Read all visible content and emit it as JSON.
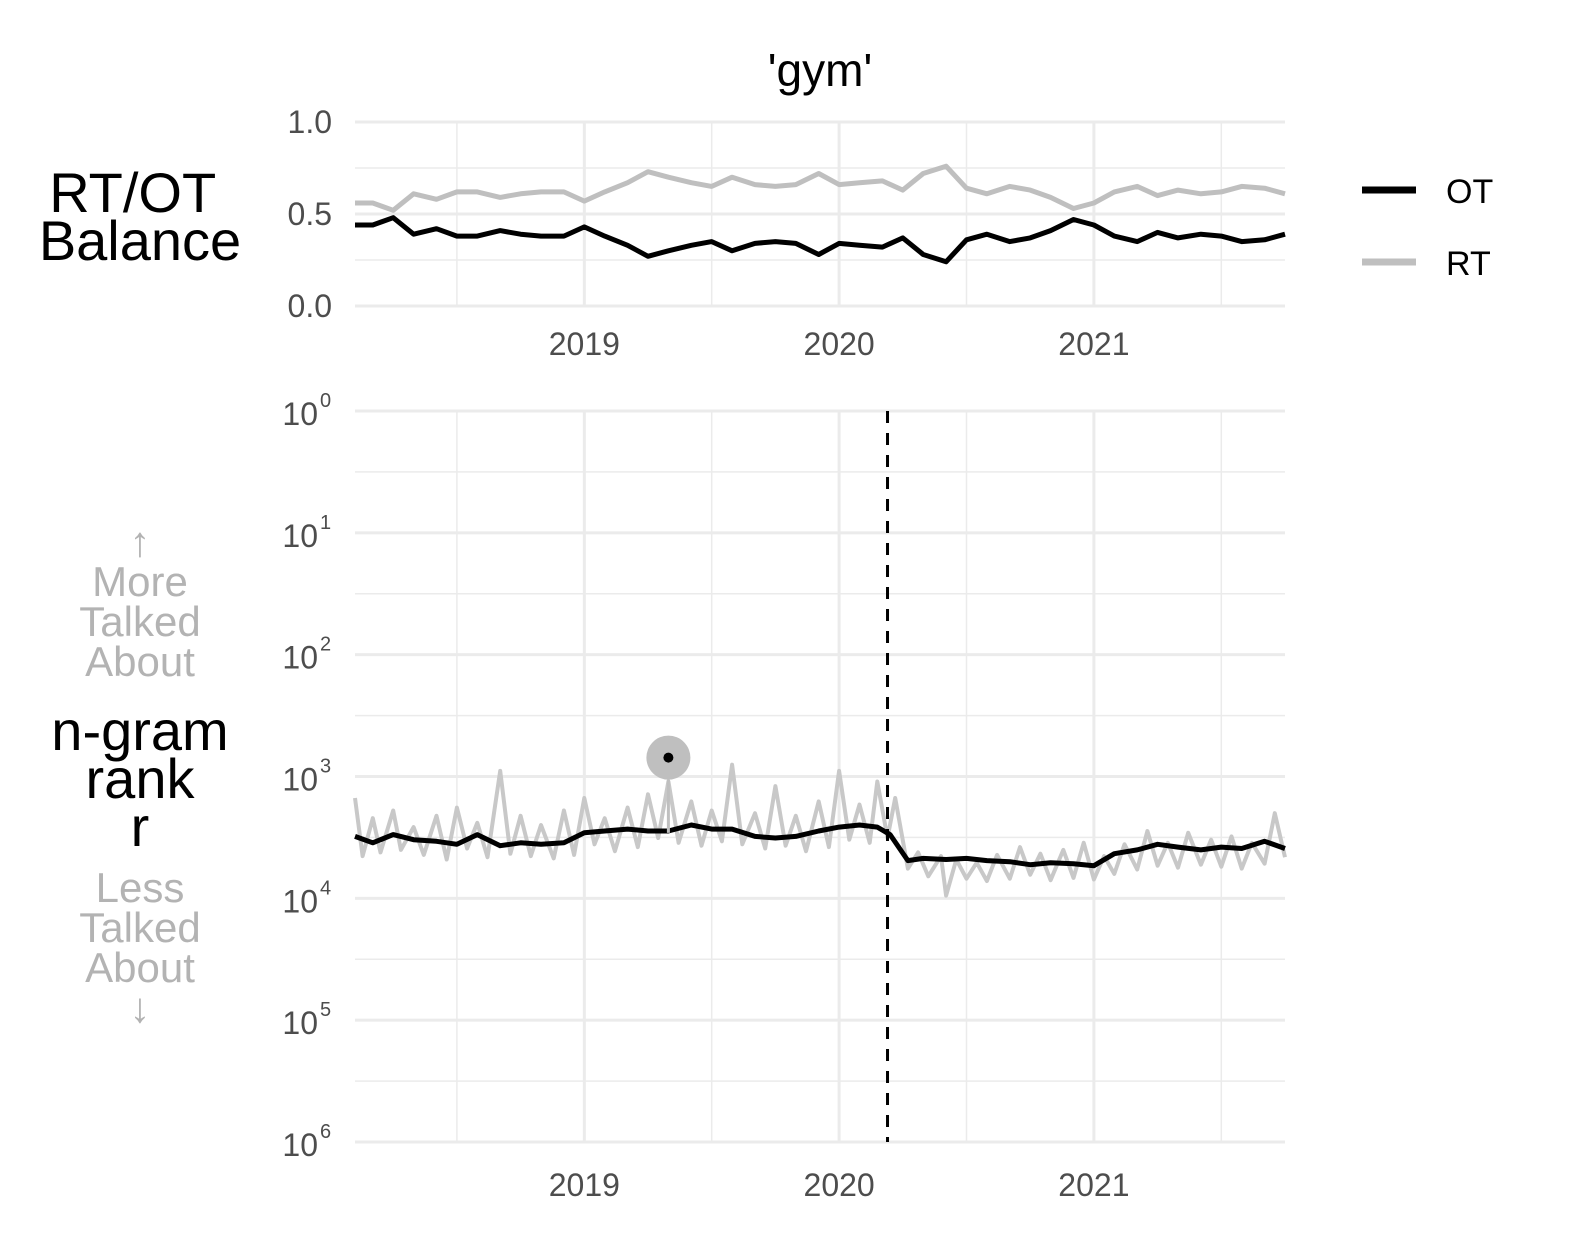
{
  "chart_data": [
    {
      "type": "line",
      "panel": "balance",
      "title": "'gym'",
      "ylabel": "RT/OT Balance",
      "ylim": [
        0,
        1
      ],
      "yticks": [
        "0.0",
        "0.5",
        "1.0"
      ],
      "xticks": [
        "2019",
        "2020",
        "2021"
      ],
      "xlim": [
        2018.1,
        2021.75
      ],
      "grid": true,
      "legend": {
        "position": "right",
        "entries": [
          "OT",
          "RT"
        ]
      },
      "series": [
        {
          "name": "OT",
          "color": "#000000",
          "x": [
            2018.1,
            2018.17,
            2018.25,
            2018.33,
            2018.42,
            2018.5,
            2018.58,
            2018.67,
            2018.75,
            2018.83,
            2018.92,
            2019.0,
            2019.08,
            2019.17,
            2019.25,
            2019.33,
            2019.42,
            2019.5,
            2019.58,
            2019.67,
            2019.75,
            2019.83,
            2019.92,
            2020.0,
            2020.08,
            2020.17,
            2020.25,
            2020.33,
            2020.42,
            2020.5,
            2020.58,
            2020.67,
            2020.75,
            2020.83,
            2020.92,
            2021.0,
            2021.08,
            2021.17,
            2021.25,
            2021.33,
            2021.42,
            2021.5,
            2021.58,
            2021.67,
            2021.75
          ],
          "y": [
            0.44,
            0.44,
            0.48,
            0.39,
            0.42,
            0.38,
            0.38,
            0.41,
            0.39,
            0.38,
            0.38,
            0.43,
            0.38,
            0.33,
            0.27,
            0.3,
            0.33,
            0.35,
            0.3,
            0.34,
            0.35,
            0.34,
            0.28,
            0.34,
            0.33,
            0.32,
            0.37,
            0.28,
            0.24,
            0.36,
            0.39,
            0.35,
            0.37,
            0.41,
            0.47,
            0.44,
            0.38,
            0.35,
            0.4,
            0.37,
            0.39,
            0.38,
            0.35,
            0.36,
            0.39
          ]
        },
        {
          "name": "RT",
          "color": "#bfbfbf",
          "x": [
            2018.1,
            2018.17,
            2018.25,
            2018.33,
            2018.42,
            2018.5,
            2018.58,
            2018.67,
            2018.75,
            2018.83,
            2018.92,
            2019.0,
            2019.08,
            2019.17,
            2019.25,
            2019.33,
            2019.42,
            2019.5,
            2019.58,
            2019.67,
            2019.75,
            2019.83,
            2019.92,
            2020.0,
            2020.08,
            2020.17,
            2020.25,
            2020.33,
            2020.42,
            2020.5,
            2020.58,
            2020.67,
            2020.75,
            2020.83,
            2020.92,
            2021.0,
            2021.08,
            2021.17,
            2021.25,
            2021.33,
            2021.42,
            2021.5,
            2021.58,
            2021.67,
            2021.75
          ],
          "y": [
            0.56,
            0.56,
            0.52,
            0.61,
            0.58,
            0.62,
            0.62,
            0.59,
            0.61,
            0.62,
            0.62,
            0.57,
            0.62,
            0.67,
            0.73,
            0.7,
            0.67,
            0.65,
            0.7,
            0.66,
            0.65,
            0.66,
            0.72,
            0.66,
            0.67,
            0.68,
            0.63,
            0.72,
            0.76,
            0.64,
            0.61,
            0.65,
            0.63,
            0.59,
            0.53,
            0.56,
            0.62,
            0.65,
            0.6,
            0.63,
            0.61,
            0.62,
            0.65,
            0.64,
            0.61
          ]
        }
      ]
    },
    {
      "type": "line",
      "panel": "rank",
      "ylabel": [
        "n-gram",
        "rank",
        "r"
      ],
      "annotation_up": [
        "↑",
        "More",
        "Talked",
        "About"
      ],
      "annotation_down": [
        "Less",
        "Talked",
        "About",
        "↓"
      ],
      "yscale": "log",
      "y_reversed": true,
      "ylim": [
        1,
        1000000
      ],
      "ytick_base": "10",
      "ytick_exponents": [
        "0",
        "1",
        "2",
        "3",
        "4",
        "5",
        "6"
      ],
      "xticks": [
        "2019",
        "2020",
        "2021"
      ],
      "xlim": [
        2018.1,
        2021.75
      ],
      "grid": true,
      "vline": {
        "x": 2020.19,
        "style": "dashed"
      },
      "marker": {
        "x": 2019.33,
        "y": 700
      },
      "series": [
        {
          "name": "OT",
          "color": "#000000",
          "x": [
            2018.1,
            2018.17,
            2018.25,
            2018.33,
            2018.42,
            2018.5,
            2018.58,
            2018.67,
            2018.75,
            2018.83,
            2018.92,
            2019.0,
            2019.08,
            2019.17,
            2019.25,
            2019.33,
            2019.42,
            2019.5,
            2019.58,
            2019.67,
            2019.75,
            2019.83,
            2019.92,
            2020.0,
            2020.08,
            2020.15,
            2020.2,
            2020.27,
            2020.33,
            2020.42,
            2020.5,
            2020.58,
            2020.67,
            2020.75,
            2020.83,
            2020.92,
            2021.0,
            2021.08,
            2021.17,
            2021.25,
            2021.33,
            2021.42,
            2021.5,
            2021.58,
            2021.67,
            2021.75
          ],
          "y": [
            3100,
            3500,
            3000,
            3300,
            3400,
            3600,
            3000,
            3700,
            3500,
            3600,
            3500,
            2900,
            2800,
            2700,
            2800,
            2800,
            2500,
            2700,
            2700,
            3100,
            3200,
            3100,
            2800,
            2600,
            2500,
            2600,
            3000,
            4900,
            4700,
            4800,
            4700,
            4900,
            5000,
            5300,
            5100,
            5200,
            5400,
            4300,
            4000,
            3600,
            3800,
            4000,
            3800,
            3900,
            3400,
            3900
          ]
        },
        {
          "name": "RT",
          "color": "#c8c8c8",
          "x": [
            2018.1,
            2018.13,
            2018.17,
            2018.2,
            2018.25,
            2018.28,
            2018.33,
            2018.37,
            2018.42,
            2018.46,
            2018.5,
            2018.54,
            2018.58,
            2018.62,
            2018.67,
            2018.71,
            2018.75,
            2018.79,
            2018.83,
            2018.88,
            2018.92,
            2018.96,
            2019.0,
            2019.04,
            2019.08,
            2019.12,
            2019.17,
            2019.21,
            2019.25,
            2019.29,
            2019.33,
            2019.37,
            2019.42,
            2019.46,
            2019.5,
            2019.54,
            2019.58,
            2019.62,
            2019.67,
            2019.71,
            2019.75,
            2019.79,
            2019.83,
            2019.87,
            2019.92,
            2019.96,
            2020.0,
            2020.04,
            2020.08,
            2020.12,
            2020.15,
            2020.19,
            2020.22,
            2020.27,
            2020.31,
            2020.35,
            2020.4,
            2020.42,
            2020.46,
            2020.5,
            2020.54,
            2020.58,
            2020.62,
            2020.67,
            2020.71,
            2020.75,
            2020.79,
            2020.83,
            2020.88,
            2020.92,
            2020.96,
            2021.0,
            2021.04,
            2021.08,
            2021.12,
            2021.17,
            2021.21,
            2021.25,
            2021.29,
            2021.33,
            2021.37,
            2021.42,
            2021.46,
            2021.5,
            2021.54,
            2021.58,
            2021.62,
            2021.67,
            2021.71,
            2021.75
          ],
          "y": [
            1500,
            4500,
            2200,
            4200,
            1900,
            4000,
            2600,
            4400,
            2100,
            4800,
            1800,
            3900,
            2400,
            4600,
            900,
            4300,
            2100,
            4500,
            2500,
            4700,
            1900,
            4400,
            1500,
            3600,
            2200,
            4100,
            1800,
            3800,
            1400,
            3200,
            1100,
            3500,
            1600,
            3700,
            1900,
            3400,
            800,
            3600,
            2000,
            3900,
            1200,
            3700,
            2100,
            4100,
            1600,
            3800,
            900,
            3300,
            1700,
            3500,
            1100,
            3200,
            1500,
            5700,
            4200,
            6600,
            4500,
            9500,
            4800,
            6900,
            5100,
            7200,
            4400,
            6900,
            3800,
            6400,
            4300,
            7100,
            4000,
            6800,
            3500,
            7000,
            4500,
            6300,
            3600,
            5800,
            2800,
            5400,
            3500,
            5600,
            2900,
            5300,
            3300,
            5500,
            3100,
            5700,
            3500,
            5200,
            2000,
            4600
          ]
        }
      ]
    }
  ]
}
